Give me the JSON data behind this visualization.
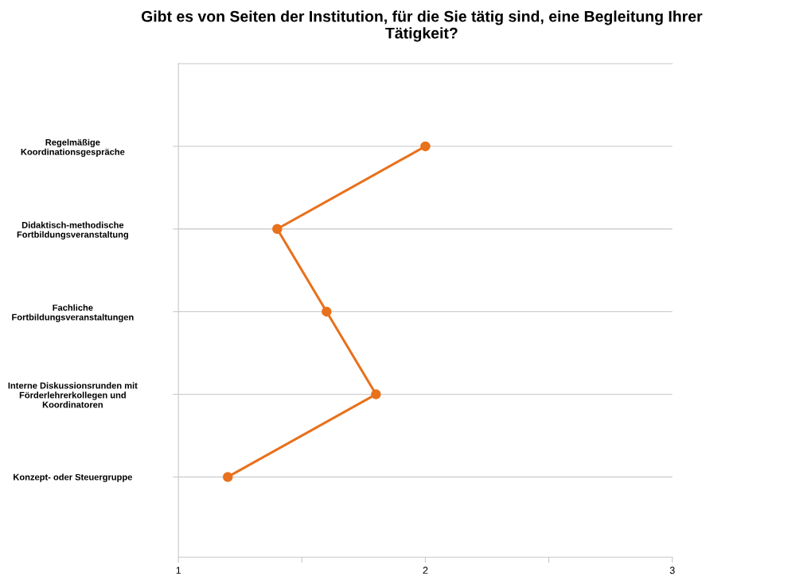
{
  "chart_data": {
    "type": "line",
    "orientation": "horizontal",
    "title": "Gibt es von Seiten der Institution, für die Sie tätig sind, eine Begleitung Ihrer\nTätigkeit?",
    "categories": [
      "Regelmäßige\nKoordinationsgespräche",
      "Didaktisch-methodische\nFortbildungsveranstaltung",
      "Fachliche\nFortbildungsveranstaltungen",
      "Interne Diskussionsrunden mit\nFörderlehrerkollegen und\nKoordinatoren",
      "Konzept- oder Steuergruppe"
    ],
    "series": [
      {
        "color": "#e8711c",
        "values": [
          2.0,
          1.4,
          1.6,
          1.8,
          1.2
        ]
      }
    ],
    "xlim": [
      1,
      3
    ],
    "xticks": [
      1,
      {
        "value": 1.5,
        "label": null
      },
      2,
      {
        "value": 2.5,
        "label": null
      },
      3
    ],
    "grid": "y",
    "marker": "circle",
    "line_style": "solid",
    "legend": false
  }
}
